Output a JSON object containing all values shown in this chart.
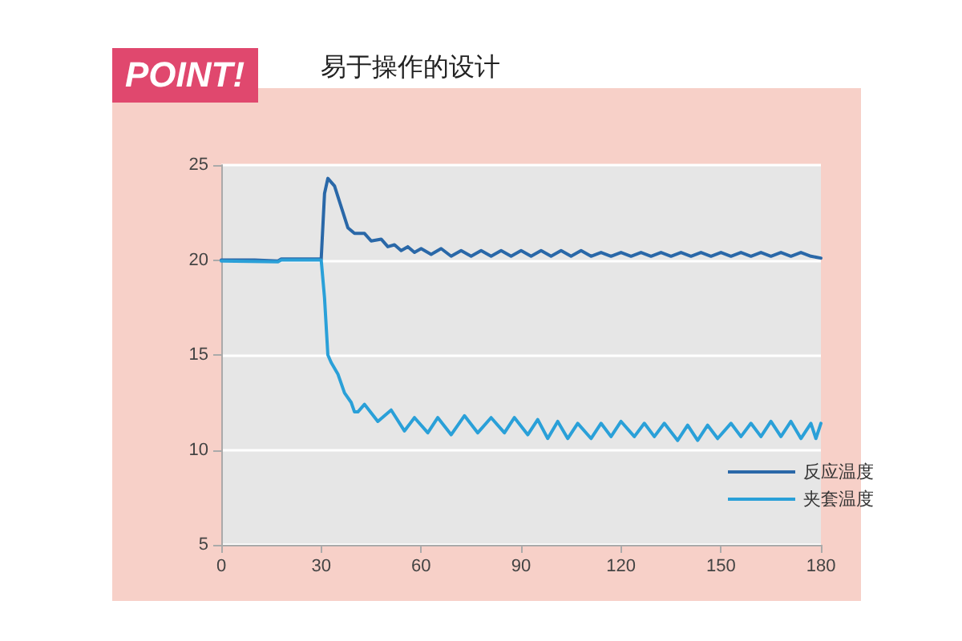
{
  "chart_data": {
    "type": "line",
    "title": "易于操作的设计",
    "annotations": [
      "POINT!"
    ],
    "xlim": [
      0,
      180
    ],
    "xticks": [
      0,
      30,
      60,
      90,
      120,
      150,
      180
    ],
    "ylim": [
      5,
      25
    ],
    "yticks": [
      5,
      10,
      15,
      20,
      25
    ],
    "grid": "y",
    "legend": "bottom right",
    "marker": "none",
    "line_style": "solid",
    "series": [
      {
        "name": "反应温度",
        "color": "#2a68a8",
        "x": [
          0,
          10,
          17,
          18,
          30,
          31,
          32,
          34,
          36,
          38,
          40,
          43,
          45,
          48,
          50,
          52,
          54,
          56,
          58,
          60,
          63,
          66,
          69,
          72,
          75,
          78,
          81,
          84,
          87,
          90,
          93,
          96,
          99,
          102,
          105,
          108,
          111,
          114,
          117,
          120,
          123,
          126,
          129,
          132,
          135,
          138,
          141,
          144,
          147,
          150,
          153,
          156,
          159,
          162,
          165,
          168,
          171,
          174,
          177,
          180
        ],
        "values": [
          20,
          20,
          19.95,
          20.05,
          20.05,
          23.5,
          24.3,
          23.9,
          22.8,
          21.7,
          21.4,
          21.4,
          21,
          21.1,
          20.7,
          20.8,
          20.5,
          20.7,
          20.4,
          20.6,
          20.3,
          20.6,
          20.2,
          20.5,
          20.2,
          20.5,
          20.2,
          20.5,
          20.2,
          20.5,
          20.2,
          20.5,
          20.2,
          20.5,
          20.2,
          20.5,
          20.2,
          20.4,
          20.2,
          20.4,
          20.2,
          20.4,
          20.2,
          20.4,
          20.2,
          20.4,
          20.2,
          20.4,
          20.2,
          20.4,
          20.2,
          20.4,
          20.2,
          20.4,
          20.2,
          20.4,
          20.2,
          20.4,
          20.2,
          20.1
        ]
      },
      {
        "name": "夹套温度",
        "color": "#2aa0d8",
        "x": [
          0,
          17,
          18,
          30,
          31,
          32,
          33,
          35,
          37,
          39,
          40,
          41,
          43,
          47,
          51,
          55,
          58,
          62,
          65,
          69,
          73,
          77,
          81,
          85,
          88,
          92,
          95,
          98,
          101,
          104,
          107,
          111,
          114,
          117,
          120,
          124,
          127,
          130,
          133,
          137,
          140,
          143,
          146,
          149,
          153,
          156,
          159,
          162,
          165,
          168,
          171,
          174,
          177,
          178.5,
          180
        ],
        "values": [
          19.95,
          19.9,
          20,
          20,
          18,
          15,
          14.6,
          14,
          13,
          12.5,
          12,
          12,
          12.4,
          11.5,
          12.1,
          11,
          11.7,
          10.9,
          11.7,
          10.8,
          11.8,
          10.9,
          11.7,
          10.9,
          11.7,
          10.8,
          11.6,
          10.6,
          11.5,
          10.6,
          11.4,
          10.6,
          11.4,
          10.7,
          11.5,
          10.7,
          11.4,
          10.7,
          11.4,
          10.5,
          11.3,
          10.5,
          11.3,
          10.6,
          11.4,
          10.7,
          11.4,
          10.7,
          11.5,
          10.7,
          11.5,
          10.6,
          11.4,
          10.6,
          11.4
        ]
      }
    ]
  }
}
